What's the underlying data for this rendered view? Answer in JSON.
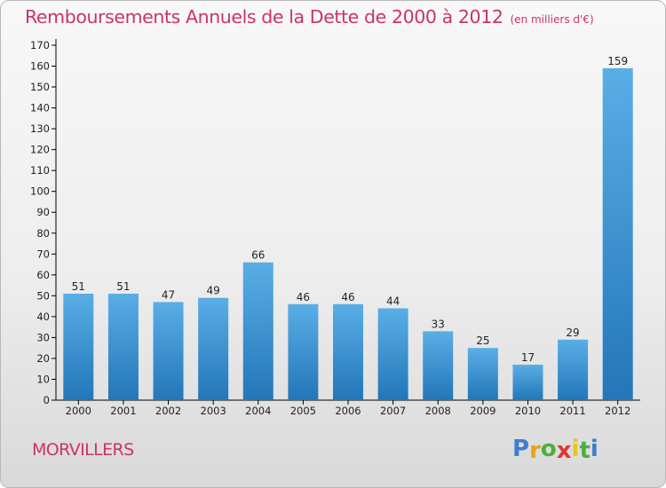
{
  "chart_data": {
    "type": "bar",
    "title": "Remboursements Annuels de la Dette de 2000 à 2012",
    "unit_note": "(en milliers d'€)",
    "categories": [
      "2000",
      "2001",
      "2002",
      "2003",
      "2004",
      "2005",
      "2006",
      "2007",
      "2008",
      "2009",
      "2010",
      "2011",
      "2012"
    ],
    "values": [
      51,
      51,
      47,
      49,
      66,
      46,
      46,
      44,
      33,
      25,
      17,
      29,
      159
    ],
    "data_labels": [
      "51",
      "51",
      "47",
      "49",
      "66",
      "46",
      "46",
      "44",
      "33",
      "25",
      "17",
      "29",
      "159"
    ],
    "ylim": [
      0,
      170
    ],
    "yticks": [
      0,
      10,
      20,
      30,
      40,
      50,
      60,
      70,
      80,
      90,
      100,
      110,
      120,
      130,
      140,
      150,
      160,
      170
    ],
    "xlabel": "",
    "ylabel": "",
    "grid": false,
    "colors": {
      "bar_top": "#5aaee6",
      "bar_bottom": "#2376b8",
      "axis": "#000000",
      "title": "#cc3366"
    }
  },
  "footer": {
    "commune": "MORVILLERS",
    "logo": {
      "letters": [
        "P",
        "r",
        "o",
        "x",
        "i",
        "t",
        "i"
      ],
      "colors": [
        "#3a7fd0",
        "#e8a21a",
        "#4cae3f",
        "#e03535",
        "#e8c51a",
        "#4cae3f",
        "#3a7fd0"
      ]
    }
  }
}
